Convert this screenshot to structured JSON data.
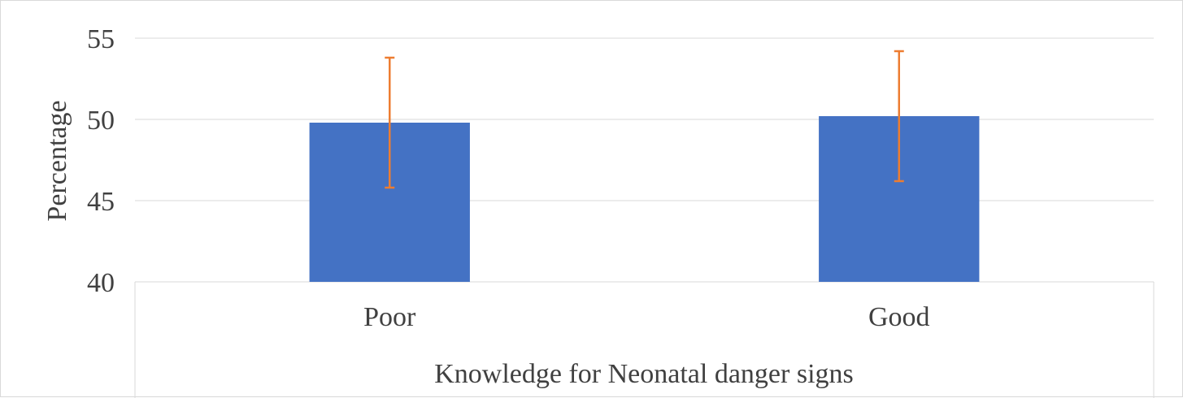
{
  "chart_data": {
    "type": "bar",
    "categories": [
      "Poor",
      "Good"
    ],
    "series": [
      {
        "values": [
          49.8,
          50.2
        ],
        "error_low": [
          45.8,
          46.2
        ],
        "error_high": [
          53.8,
          54.2
        ],
        "color": "#4472c4",
        "error_color": "#ed7d31"
      }
    ],
    "title": "",
    "xlabel": "Knowledge for Neonatal danger signs",
    "ylabel": "Percentage",
    "ylim": [
      40,
      55
    ],
    "yticks": [
      40,
      45,
      50,
      55
    ],
    "grid": true,
    "legend": "none",
    "colors": {
      "bar": "#4472c4",
      "error_bar": "#ed7d31",
      "grid": "#d9d9d9",
      "text": "#404040"
    }
  }
}
